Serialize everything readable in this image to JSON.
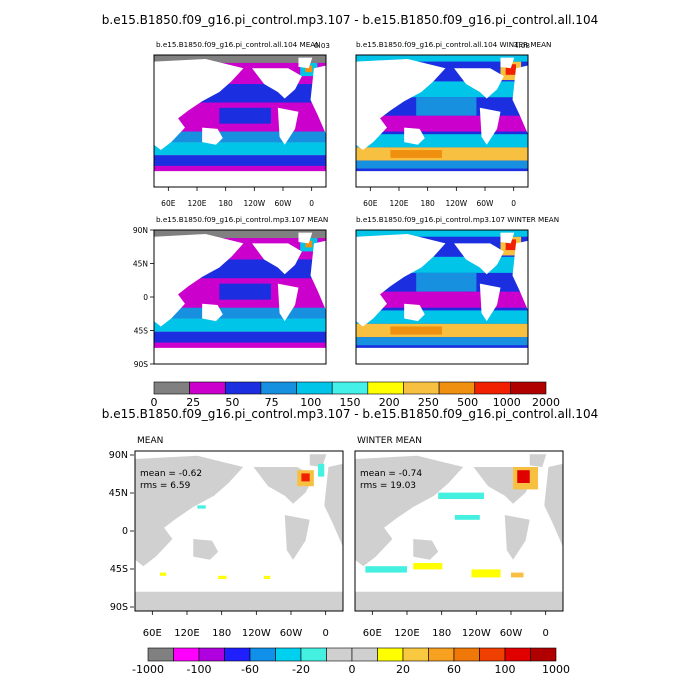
{
  "chart_data": [
    {
      "type": "heatmap",
      "title": "b.e15.B1850.f09_g16.pi_control.mp3.107 - b.e15.B1850.f09_g16.pi_control.all.104",
      "panels": [
        {
          "id": "p1",
          "title": "b.e15.B1850.f09_g16.pi_control.all.104 MEAN",
          "corner": "0.03"
        },
        {
          "id": "p2",
          "title": "b.e15.B1850.f09_g16.pi_control.all.104 WINTER MEAN",
          "corner": "4.08"
        },
        {
          "id": "p3",
          "title": "b.e15.B1850.f09_g16.pi_control.mp3.107 MEAN",
          "corner": ""
        },
        {
          "id": "p4",
          "title": "b.e15.B1850.f09_g16.pi_control.mp3.107 WINTER MEAN",
          "corner": ""
        }
      ],
      "xticks": [
        "60E",
        "120E",
        "180",
        "120W",
        "60W",
        "0"
      ],
      "yticks": [
        "90N",
        "45N",
        "0",
        "45S",
        "90S"
      ],
      "colorbar": {
        "labels": [
          "0",
          "25",
          "50",
          "75",
          "100",
          "150",
          "200",
          "250",
          "500",
          "1000",
          "2000"
        ],
        "colors": [
          "#808080",
          "#cc00cc",
          "#1c2fe0",
          "#1890e0",
          "#00c4e8",
          "#44f0e8",
          "#ffff00",
          "#f8c040",
          "#f09010",
          "#f02000",
          "#b00000"
        ]
      }
    },
    {
      "type": "heatmap",
      "title": "b.e15.B1850.f09_g16.pi_control.mp3.107 - b.e15.B1850.f09_g16.pi_control.all.104",
      "panels": [
        {
          "id": "d1",
          "title": "MEAN",
          "stats": [
            "mean = -0.62",
            "rms = 6.59"
          ],
          "mean": -0.62,
          "rms": 6.59
        },
        {
          "id": "d2",
          "title": "WINTER MEAN",
          "stats": [
            "mean = -0.74",
            "rms = 19.03"
          ],
          "mean": -0.74,
          "rms": 19.03
        }
      ],
      "xticks": [
        "60E",
        "120E",
        "180",
        "120W",
        "60W",
        "0"
      ],
      "yticks": [
        "90N",
        "45N",
        "0",
        "45S",
        "90S"
      ],
      "colorbar": {
        "labels": [
          "-1000",
          "-100",
          "-60",
          "-20",
          "0",
          "20",
          "60",
          "100",
          "1000"
        ],
        "colors": [
          "#808080",
          "#ff00ff",
          "#b000e0",
          "#2020ff",
          "#1090e8",
          "#00d0f0",
          "#44f0e0",
          "#d0d0d0",
          "#d0d0d0",
          "#ffff00",
          "#f8c840",
          "#f8a020",
          "#f07808",
          "#f04000",
          "#e00000",
          "#b00000"
        ]
      }
    }
  ],
  "colors": {
    "grey": "#808080",
    "magenta": "#cc00cc",
    "blue": "#1c2fe0",
    "midblue": "#1890e0",
    "cyan": "#00c4e8",
    "aqua": "#44f0e8",
    "yellow": "#ffff00",
    "lightorange": "#f8c040",
    "orange": "#f09010",
    "red": "#f02000",
    "darkred": "#b00000",
    "neutral": "#d0d0d0"
  }
}
